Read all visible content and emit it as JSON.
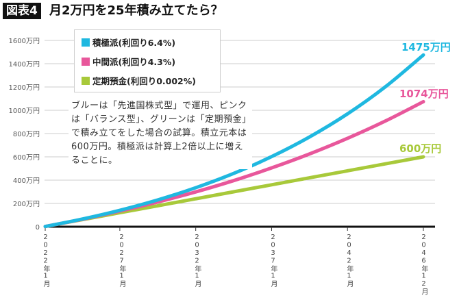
{
  "header": {
    "badge": "図表4",
    "title": "月2万円を25年積み立てたら？"
  },
  "note": "ブルーは「先進国株式型」で運用、ピンクは「バランス型」、グリーンは「定期預金」で積み立てをした場合の試算。積立元本は600万円。積極派は計算上2倍以上に増えることに。",
  "chart_data": {
    "type": "line",
    "title": "月2万円を25年積み立てたら？",
    "ylim": [
      0,
      1600
    ],
    "yticks": [
      0,
      200,
      400,
      600,
      800,
      1000,
      1200,
      1400,
      1600
    ],
    "ytick_labels": [
      "0",
      "200万円",
      "400万円",
      "600万円",
      "800万円",
      "1000万円",
      "1200万円",
      "1400万円",
      "1600万円"
    ],
    "x_months": [
      1,
      30,
      60,
      90,
      120,
      150,
      180,
      210,
      240,
      270,
      300
    ],
    "xticks": [
      1,
      60,
      120,
      180,
      240,
      300
    ],
    "xtick_labels": [
      "2022年1月",
      "2027年1月",
      "2032年1月",
      "2037年1月",
      "2042年1月",
      "2046年12月"
    ],
    "grid": true,
    "legend_position": "top-left",
    "series": [
      {
        "name": "積極派(利回り6.4%)",
        "color": "#1fb8e0",
        "values": [
          2,
          65,
          141,
          230,
          335,
          458,
          602,
          771,
          969,
          1202,
          1475
        ],
        "end_label": "1475万円"
      },
      {
        "name": "中間派(利回り4.3%)",
        "color": "#e8579b",
        "values": [
          2,
          63,
          134,
          212,
          299,
          396,
          505,
          625,
          759,
          908,
          1074
        ],
        "end_label": "1074万円"
      },
      {
        "name": "定期預金(利回り0.002%)",
        "color": "#a8c93a",
        "values": [
          2,
          60,
          120,
          180,
          240,
          300,
          360,
          420,
          480,
          540,
          600
        ],
        "end_label": "600万円"
      }
    ]
  }
}
